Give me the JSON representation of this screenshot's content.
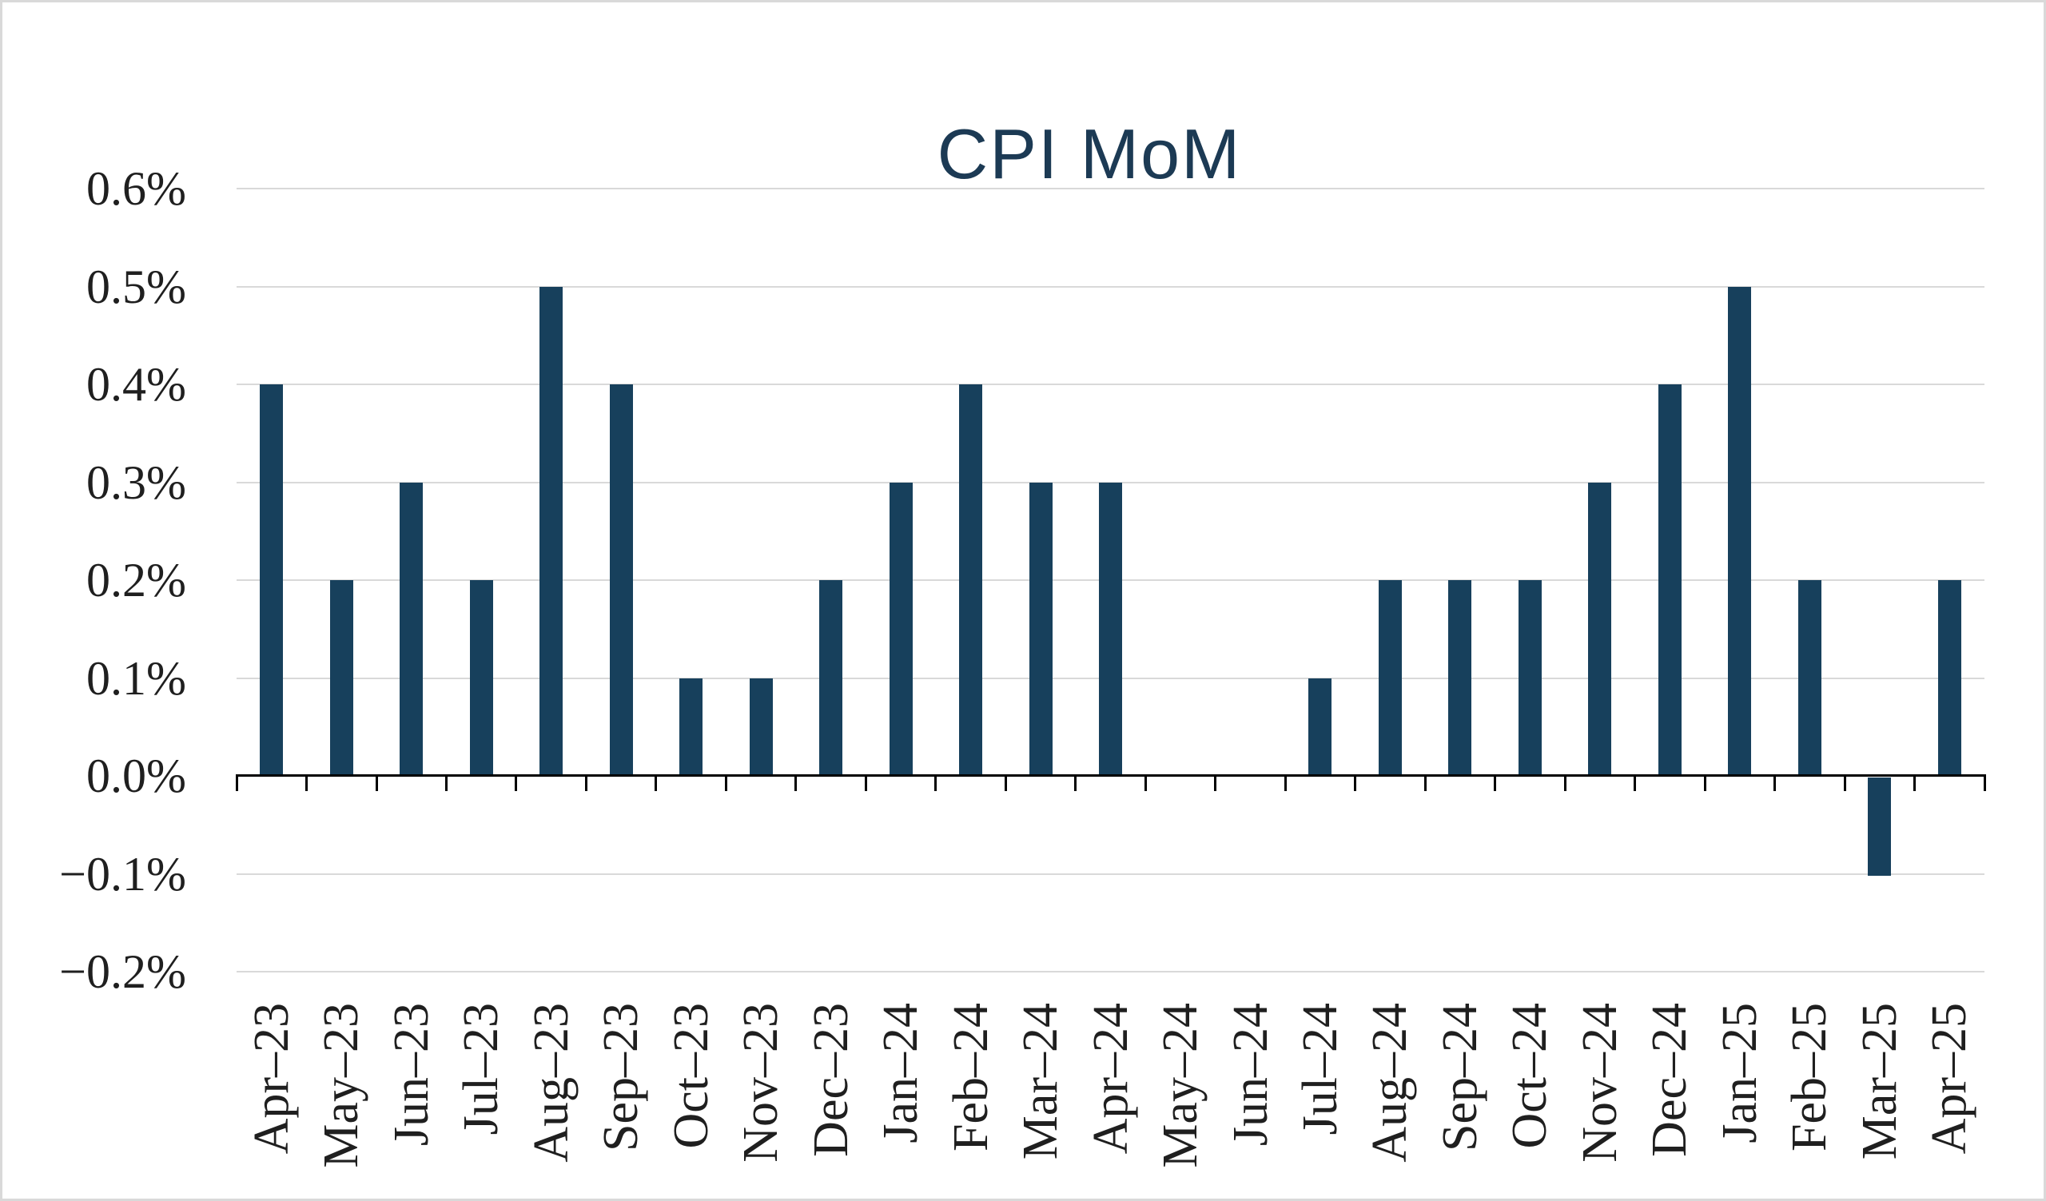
{
  "frame": {
    "background": "#ffffff",
    "border_color": "#d9d9d9"
  },
  "chart_data": {
    "type": "bar",
    "title": "CPI MoM",
    "categories": [
      "Apr–23",
      "May–23",
      "Jun–23",
      "Jul–23",
      "Aug–23",
      "Sep–23",
      "Oct–23",
      "Nov–23",
      "Dec–23",
      "Jan–24",
      "Feb–24",
      "Mar–24",
      "Apr–24",
      "May–24",
      "Jun–24",
      "Jul–24",
      "Aug–24",
      "Sep–24",
      "Oct–24",
      "Nov–24",
      "Dec–24",
      "Jan–25",
      "Feb–25",
      "Mar–25",
      "Apr–25"
    ],
    "values": [
      0.4,
      0.2,
      0.3,
      0.2,
      0.5,
      0.4,
      0.1,
      0.1,
      0.2,
      0.3,
      0.4,
      0.3,
      0.3,
      0.0,
      0.0,
      0.1,
      0.2,
      0.2,
      0.2,
      0.3,
      0.4,
      0.5,
      0.2,
      -0.1,
      0.2
    ],
    "value_unit": "%",
    "xlabel": "",
    "ylabel": "",
    "ylim": [
      -0.2,
      0.6
    ],
    "y_ticks": [
      {
        "value": 0.6,
        "label": "0.6%"
      },
      {
        "value": 0.5,
        "label": "0.5%"
      },
      {
        "value": 0.4,
        "label": "0.4%"
      },
      {
        "value": 0.3,
        "label": "0.3%"
      },
      {
        "value": 0.2,
        "label": "0.2%"
      },
      {
        "value": 0.1,
        "label": "0.1%"
      },
      {
        "value": 0.0,
        "label": "0.0%"
      },
      {
        "value": -0.1,
        "label": "−0.1%"
      },
      {
        "value": -0.2,
        "label": "−0.2%"
      }
    ],
    "grid": "horizontal",
    "legend": "none",
    "colors": {
      "bar": "#17405C",
      "title": "#1C3A54",
      "tick_label": "#1f1f1f",
      "gridline": "#D9D9D9",
      "axis": "#000000"
    }
  }
}
